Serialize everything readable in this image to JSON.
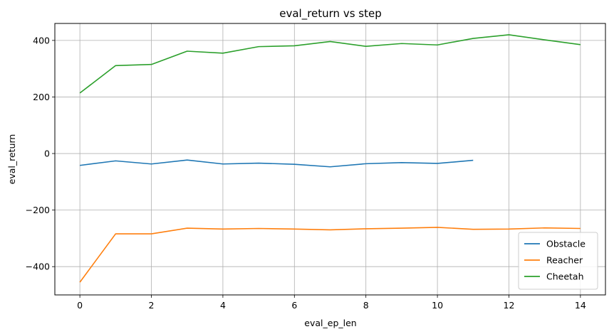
{
  "chart_data": {
    "type": "line",
    "title": "eval_return vs step",
    "xlabel": "eval_ep_len",
    "ylabel": "eval_return",
    "xlim": [
      -0.7,
      14.7
    ],
    "ylim": [
      -500,
      460
    ],
    "xticks": [
      0,
      2,
      4,
      6,
      8,
      10,
      12,
      14
    ],
    "yticks": [
      -400,
      -200,
      0,
      200,
      400
    ],
    "ytick_labels": [
      "−400",
      "−200",
      "0",
      "200",
      "400"
    ],
    "grid": true,
    "legend_position": "lower-right",
    "series": [
      {
        "name": "Obstacle",
        "color": "#1f77b4",
        "x": [
          0,
          1,
          2,
          3,
          4,
          5,
          6,
          7,
          8,
          9,
          10,
          11
        ],
        "values": [
          -42,
          -26,
          -37,
          -23,
          -37,
          -34,
          -38,
          -47,
          -36,
          -32,
          -35,
          -24
        ]
      },
      {
        "name": "Reacher",
        "color": "#ff7f0e",
        "x": [
          0,
          1,
          2,
          3,
          4,
          5,
          6,
          7,
          8,
          9,
          10,
          11,
          12,
          13,
          14
        ],
        "values": [
          -455,
          -284,
          -284,
          -264,
          -267,
          -265,
          -267,
          -270,
          -266,
          -264,
          -261,
          -268,
          -267,
          -263,
          -265
        ]
      },
      {
        "name": "Cheetah",
        "color": "#2ca02c",
        "x": [
          0,
          1,
          2,
          3,
          4,
          5,
          6,
          7,
          8,
          9,
          10,
          11,
          12,
          13,
          14
        ],
        "values": [
          214,
          311,
          315,
          362,
          355,
          378,
          381,
          396,
          379,
          389,
          384,
          407,
          420,
          402,
          385
        ]
      }
    ]
  }
}
